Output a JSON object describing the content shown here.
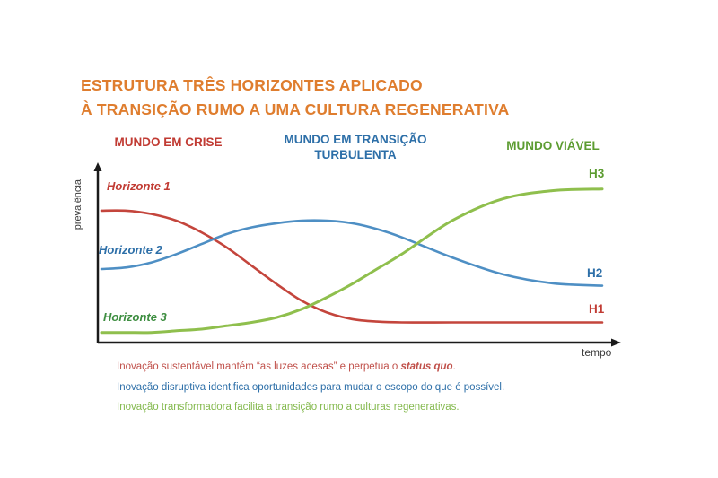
{
  "title": {
    "line1": "ESTRUTURA TRÊS HORIZONTES APLICADO",
    "line2": "À TRANSIÇÃO RUMO A UMA CULTURA REGENERATIVA",
    "color": "#DF7D2E"
  },
  "headers": {
    "crisis": {
      "label": "MUNDO EM CRISE",
      "color": "#C13B33"
    },
    "transition": {
      "line1": "MUNDO EM TRANSIÇÃO",
      "line2": "TURBULENTA",
      "color": "#2D6FA8"
    },
    "viable": {
      "label": "MUNDO VIÁVEL",
      "color": "#5C9C31"
    }
  },
  "chart_labels": {
    "h1": "Horizonte 1",
    "h2": "Horizonte 2",
    "h3": "Horizonte 3",
    "h1_end": "H1",
    "h2_end": "H2",
    "h3_end": "H3",
    "ylabel": "prevalência",
    "xlabel": "tempo"
  },
  "chart_data": {
    "type": "line",
    "title": "Estrutura Três Horizontes",
    "xlabel": "tempo",
    "ylabel": "prevalência",
    "xlim": [
      0,
      10
    ],
    "ylim": [
      0,
      1
    ],
    "grid": false,
    "legend_position": "inline-labels",
    "x": [
      0,
      0.5,
      1,
      1.5,
      2,
      2.5,
      3,
      3.5,
      4,
      4.5,
      5,
      5.5,
      6,
      7,
      8,
      9,
      10
    ],
    "series": [
      {
        "name": "Horizonte 1",
        "end_label": "H1",
        "color": "#C4453C",
        "width": 2.6,
        "values": [
          0.78,
          0.78,
          0.76,
          0.72,
          0.65,
          0.56,
          0.45,
          0.34,
          0.24,
          0.17,
          0.13,
          0.115,
          0.11,
          0.11,
          0.11,
          0.11,
          0.11
        ]
      },
      {
        "name": "Horizonte 2",
        "end_label": "H2",
        "color": "#4E8FC4",
        "width": 2.6,
        "values": [
          0.43,
          0.44,
          0.47,
          0.52,
          0.58,
          0.64,
          0.68,
          0.705,
          0.72,
          0.72,
          0.705,
          0.67,
          0.62,
          0.5,
          0.4,
          0.345,
          0.33
        ]
      },
      {
        "name": "Horizonte 3",
        "end_label": "H3",
        "color": "#8FBF4D",
        "width": 3,
        "values": [
          0.05,
          0.05,
          0.05,
          0.06,
          0.07,
          0.09,
          0.11,
          0.14,
          0.19,
          0.26,
          0.34,
          0.43,
          0.52,
          0.72,
          0.85,
          0.9,
          0.91
        ]
      }
    ]
  },
  "footer": {
    "line1": {
      "prefix": "Inovação sustentável mantém “as luzes acesas” e perpetua o ",
      "emphasis": "status quo",
      "suffix": ".",
      "color": "#C0504A"
    },
    "line2": {
      "text": "Inovação disruptiva identifica oportunidades para mudar o escopo do que é possível.",
      "color": "#2D6FA8"
    },
    "line3": {
      "text": "Inovação transformadora facilita a transição rumo a culturas regenerativas.",
      "color": "#84B94E"
    }
  }
}
